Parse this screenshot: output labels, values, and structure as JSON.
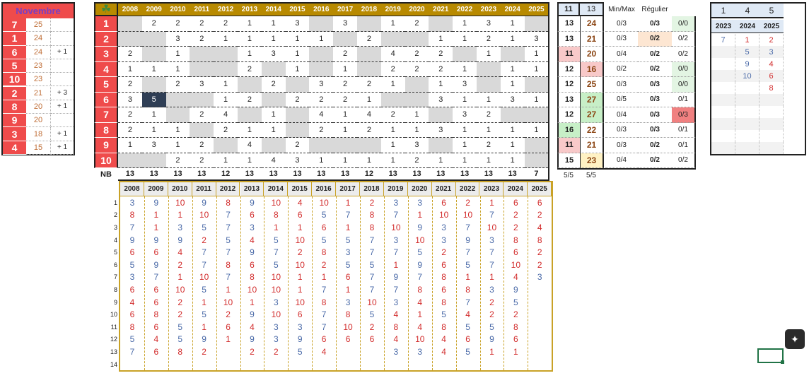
{
  "month_title": "Novembre",
  "left_panel": {
    "rows": [
      {
        "num": "7",
        "count": "25",
        "bonus": ""
      },
      {
        "num": "1",
        "count": "24",
        "bonus": ""
      },
      {
        "num": "6",
        "count": "24",
        "bonus": "+ 1"
      },
      {
        "num": "5",
        "count": "23",
        "bonus": ""
      },
      {
        "num": "10",
        "count": "23",
        "bonus": ""
      },
      {
        "num": "2",
        "count": "21",
        "bonus": "+ 3"
      },
      {
        "num": "8",
        "count": "20",
        "bonus": "+ 1"
      },
      {
        "num": "9",
        "count": "20",
        "bonus": ""
      },
      {
        "num": "3",
        "count": "18",
        "bonus": "+ 1"
      },
      {
        "num": "4",
        "count": "15",
        "bonus": "+ 1"
      }
    ]
  },
  "main_grid": {
    "clover_icon": "four-leaf-clover",
    "years": [
      "2008",
      "2009",
      "2010",
      "2011",
      "2012",
      "2013",
      "2014",
      "2015",
      "2016",
      "2017",
      "2018",
      "2019",
      "2020",
      "2021",
      "2022",
      "2023",
      "2024",
      "2025"
    ],
    "rows": [
      {
        "num": "1",
        "cells": [
          "",
          "2",
          "2",
          "2",
          "2",
          "1",
          "1",
          "3",
          "",
          "3",
          "",
          "1",
          "2",
          "",
          "1",
          "3",
          "1",
          ""
        ],
        "nb": "13",
        "total": "24",
        "minmax": "0/3",
        "reg": "0/3",
        "last": "0/0"
      },
      {
        "num": "2",
        "cells": [
          "",
          "",
          "3",
          "2",
          "1",
          "1",
          "1",
          "1",
          "1",
          "",
          "2",
          "",
          "",
          "1",
          "1",
          "2",
          "1",
          "3"
        ],
        "nb": "13",
        "total": "21",
        "minmax": "0/3",
        "reg": "0/2",
        "last": "0/2"
      },
      {
        "num": "3",
        "cells": [
          "2",
          "",
          "1",
          "",
          "",
          "1",
          "3",
          "1",
          "",
          "2",
          "",
          "4",
          "2",
          "2",
          "",
          "1",
          "",
          "1"
        ],
        "nb": "11",
        "total": "20",
        "minmax": "0/4",
        "reg": "0/2",
        "last": "0/2"
      },
      {
        "num": "4",
        "cells": [
          "1",
          "1",
          "1",
          "",
          "",
          "2",
          "",
          "1",
          "",
          "1",
          "",
          "2",
          "2",
          "2",
          "1",
          "",
          "1",
          "1"
        ],
        "nb": "12",
        "total": "16",
        "minmax": "0/2",
        "reg": "0/2",
        "last": "0/0"
      },
      {
        "num": "5",
        "cells": [
          "2",
          "",
          "2",
          "3",
          "1",
          "",
          "2",
          "",
          "3",
          "2",
          "2",
          "1",
          "",
          "1",
          "3",
          "",
          "1",
          ""
        ],
        "nb": "12",
        "total": "25",
        "minmax": "0/3",
        "reg": "0/3",
        "last": "0/0"
      },
      {
        "num": "6",
        "cells": [
          "3",
          "5",
          "",
          "",
          "1",
          "2",
          "",
          "2",
          "2",
          "2",
          "1",
          "",
          "",
          "3",
          "1",
          "1",
          "3",
          "1"
        ],
        "nb": "13",
        "total": "27",
        "minmax": "0/5",
        "reg": "0/3",
        "last": "0/1"
      },
      {
        "num": "7",
        "cells": [
          "2",
          "1",
          "",
          "2",
          "4",
          "",
          "1",
          "",
          "4",
          "1",
          "4",
          "2",
          "1",
          "",
          "3",
          "2",
          "",
          ""
        ],
        "nb": "12",
        "total": "27",
        "minmax": "0/4",
        "reg": "0/3",
        "last": "0/3"
      },
      {
        "num": "8",
        "cells": [
          "2",
          "1",
          "1",
          "",
          "2",
          "1",
          "1",
          "",
          "2",
          "1",
          "2",
          "1",
          "1",
          "3",
          "1",
          "1",
          "1",
          "1"
        ],
        "nb": "16",
        "total": "22",
        "minmax": "0/3",
        "reg": "0/3",
        "last": "0/1"
      },
      {
        "num": "9",
        "cells": [
          "1",
          "3",
          "1",
          "2",
          "",
          "4",
          "",
          "2",
          "",
          "",
          "",
          "1",
          "3",
          "",
          "1",
          "2",
          "1",
          ""
        ],
        "nb": "11",
        "total": "21",
        "minmax": "0/3",
        "reg": "0/2",
        "last": "0/1"
      },
      {
        "num": "10",
        "cells": [
          "",
          "",
          "2",
          "2",
          "1",
          "1",
          "4",
          "3",
          "1",
          "1",
          "1",
          "1",
          "2",
          "1",
          "1",
          "1",
          "1",
          ""
        ],
        "nb": "15",
        "total": "23",
        "minmax": "0/4",
        "reg": "0/2",
        "last": "0/2"
      }
    ],
    "nb_label": "NB",
    "nb_values": [
      "13",
      "13",
      "13",
      "13",
      "12",
      "13",
      "13",
      "13",
      "13",
      "13",
      "12",
      "13",
      "13",
      "13",
      "13",
      "13",
      "13",
      "7"
    ],
    "nb_extra": [
      "5/5",
      "5/5"
    ],
    "header_extra": [
      "11",
      "13"
    ],
    "minmax_label": "Min/Max",
    "regulier_label": "Régulier"
  },
  "right_panel": {
    "top_values": [
      "1",
      "4",
      "5"
    ],
    "years": [
      "2023",
      "2024",
      "2025"
    ],
    "rows": [
      [
        "7",
        "1",
        "2"
      ],
      [
        "",
        "5",
        "3"
      ],
      [
        "",
        "9",
        "4"
      ],
      [
        "",
        "10",
        "6"
      ],
      [
        "",
        "",
        "8"
      ],
      [
        "",
        "",
        ""
      ],
      [
        "",
        "",
        ""
      ],
      [
        "",
        "",
        ""
      ],
      [
        "",
        "",
        ""
      ],
      [
        "",
        "",
        ""
      ]
    ]
  },
  "bottom_grid": {
    "years": [
      "2008",
      "2009",
      "2010",
      "2011",
      "2012",
      "2013",
      "2014",
      "2015",
      "2016",
      "2017",
      "2018",
      "2019",
      "2020",
      "2021",
      "2022",
      "2023",
      "2024",
      "2025"
    ],
    "row_labels": [
      "1",
      "2",
      "3",
      "4",
      "5",
      "6",
      "7",
      "8",
      "9",
      "10",
      "11",
      "12",
      "13",
      "14"
    ],
    "columns": [
      [
        "3",
        "8",
        "7",
        "9",
        "6",
        "5",
        "3",
        "6",
        "4",
        "6",
        "8",
        "5",
        "7",
        ""
      ],
      [
        "9",
        "1",
        "1",
        "9",
        "6",
        "9",
        "7",
        "6",
        "6",
        "8",
        "6",
        "4",
        "6",
        ""
      ],
      [
        "10",
        "1",
        "3",
        "9",
        "4",
        "2",
        "1",
        "10",
        "2",
        "2",
        "5",
        "5",
        "8",
        ""
      ],
      [
        "9",
        "10",
        "5",
        "2",
        "7",
        "7",
        "10",
        "5",
        "1",
        "5",
        "1",
        "9",
        "2",
        ""
      ],
      [
        "8",
        "7",
        "7",
        "5",
        "7",
        "8",
        "7",
        "1",
        "10",
        "2",
        "6",
        "1",
        "",
        ""
      ],
      [
        "9",
        "6",
        "3",
        "4",
        "9",
        "6",
        "8",
        "10",
        "1",
        "9",
        "4",
        "9",
        "2",
        ""
      ],
      [
        "10",
        "8",
        "1",
        "5",
        "7",
        "5",
        "10",
        "10",
        "3",
        "10",
        "3",
        "3",
        "2",
        ""
      ],
      [
        "4",
        "6",
        "1",
        "10",
        "2",
        "10",
        "1",
        "1",
        "10",
        "6",
        "3",
        "9",
        "5",
        ""
      ],
      [
        "10",
        "5",
        "6",
        "5",
        "8",
        "2",
        "1",
        "7",
        "8",
        "7",
        "7",
        "6",
        "4",
        ""
      ],
      [
        "1",
        "7",
        "1",
        "5",
        "3",
        "5",
        "6",
        "1",
        "3",
        "8",
        "10",
        "6",
        "",
        ""
      ],
      [
        "2",
        "8",
        "8",
        "7",
        "7",
        "5",
        "7",
        "7",
        "10",
        "5",
        "2",
        "6",
        "",
        ""
      ],
      [
        "3",
        "7",
        "10",
        "3",
        "7",
        "1",
        "9",
        "7",
        "3",
        "4",
        "8",
        "4",
        "3",
        ""
      ],
      [
        "3",
        "1",
        "9",
        "10",
        "5",
        "9",
        "7",
        "8",
        "4",
        "1",
        "4",
        "10",
        "3",
        ""
      ],
      [
        "6",
        "10",
        "3",
        "3",
        "2",
        "6",
        "8",
        "6",
        "8",
        "5",
        "8",
        "4",
        "4",
        ""
      ],
      [
        "2",
        "10",
        "7",
        "9",
        "7",
        "5",
        "1",
        "8",
        "7",
        "4",
        "5",
        "6",
        "5",
        ""
      ],
      [
        "1",
        "7",
        "10",
        "3",
        "7",
        "7",
        "1",
        "3",
        "2",
        "2",
        "5",
        "9",
        "1",
        ""
      ],
      [
        "6",
        "2",
        "2",
        "8",
        "6",
        "10",
        "4",
        "9",
        "5",
        "2",
        "8",
        "6",
        "1",
        ""
      ],
      [
        "6",
        "2",
        "4",
        "8",
        "2",
        "2",
        "3",
        "",
        "",
        "",
        "",
        "",
        "",
        ""
      ]
    ],
    "red_values": [
      "1",
      "2",
      "4",
      "6",
      "8",
      "10"
    ]
  },
  "colors": {
    "red": "#ef4b4b",
    "gold": "#b88a00",
    "gray": "#d9d9d9",
    "navy": "#2f3e55"
  }
}
